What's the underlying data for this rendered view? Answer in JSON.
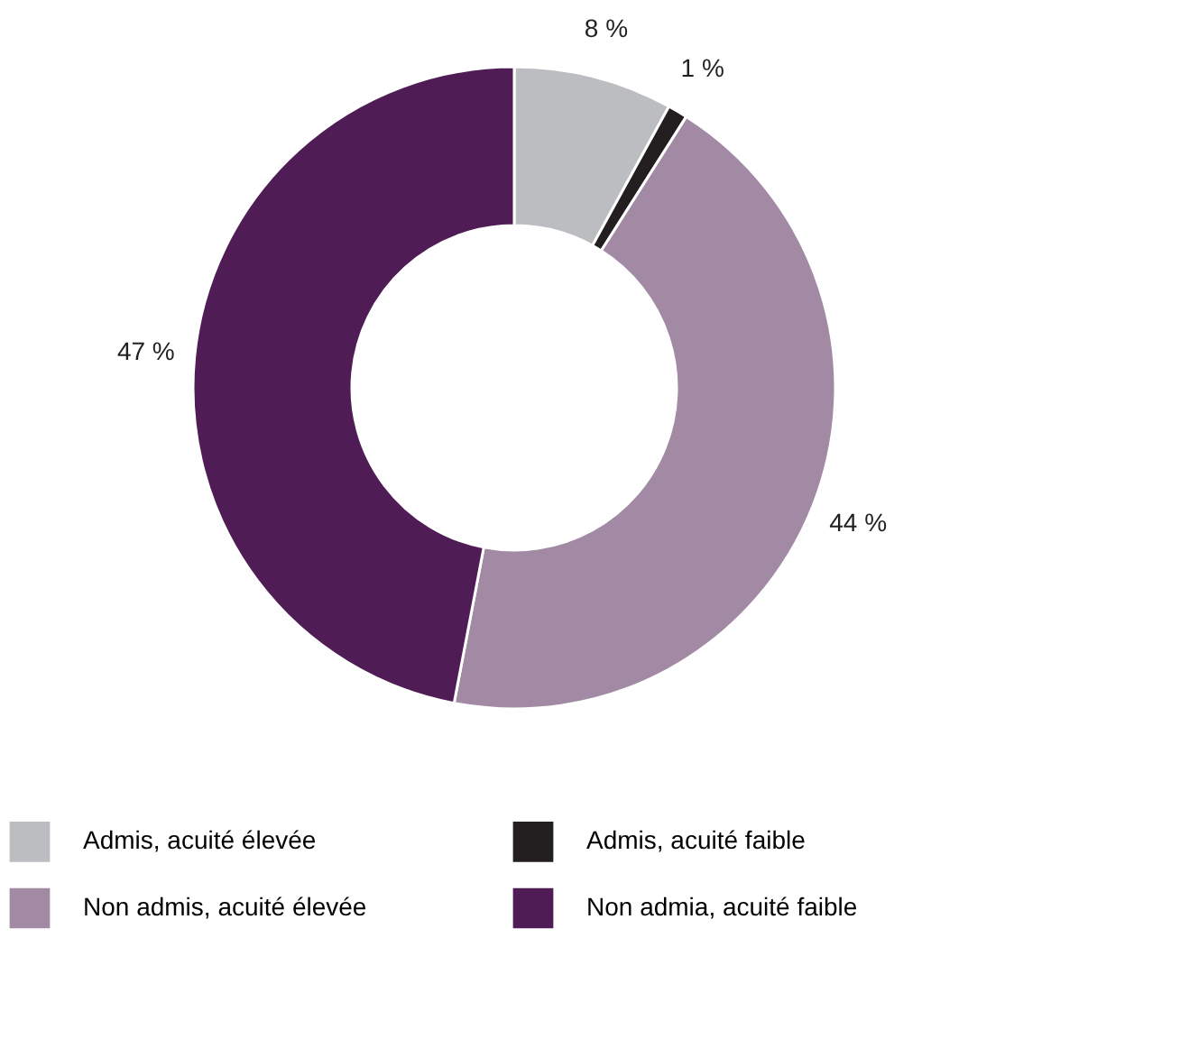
{
  "chart_data": {
    "type": "donut",
    "categories": [
      "Admis, acuité élevée",
      "Admis, acuité faible",
      "Non admis, acuité élevée",
      "Non admia, acuité faible"
    ],
    "values": [
      8,
      1,
      44,
      47
    ],
    "colors": [
      "#bcbdc0",
      "#231f20",
      "#a28aa5",
      "#501c55"
    ],
    "value_labels": [
      "8 %",
      "1 %",
      "44 %",
      "47 %"
    ],
    "legend": "bottom"
  }
}
